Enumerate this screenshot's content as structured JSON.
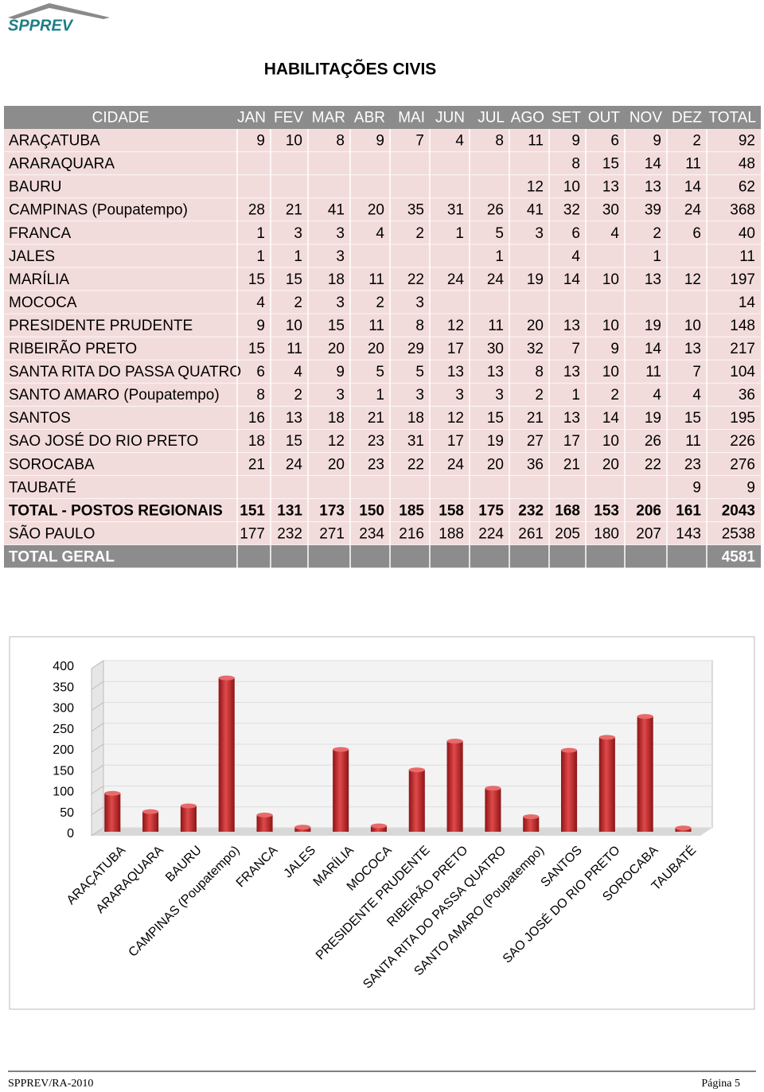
{
  "header": {
    "logo": "SPPREV",
    "title": "HABILITAÇÕES CIVIS"
  },
  "table": {
    "columns": [
      "CIDADE",
      "JAN",
      "FEV",
      "MAR",
      "ABR",
      "MAI",
      "JUN",
      "JUL",
      "AGO",
      "SET",
      "OUT",
      "NOV",
      "DEZ",
      "TOTAL"
    ],
    "rows": [
      {
        "label": "ARAÇATUBA",
        "values": [
          9,
          10,
          8,
          9,
          7,
          4,
          8,
          11,
          9,
          6,
          9,
          2,
          92
        ]
      },
      {
        "label": "ARARAQUARA",
        "values": [
          null,
          null,
          null,
          null,
          null,
          null,
          null,
          null,
          8,
          15,
          14,
          11,
          48
        ]
      },
      {
        "label": "BAURU",
        "values": [
          null,
          null,
          null,
          null,
          null,
          null,
          null,
          12,
          10,
          13,
          13,
          14,
          62
        ]
      },
      {
        "label": "CAMPINAS (Poupatempo)",
        "values": [
          28,
          21,
          41,
          20,
          35,
          31,
          26,
          41,
          32,
          30,
          39,
          24,
          368
        ]
      },
      {
        "label": "FRANCA",
        "values": [
          1,
          3,
          3,
          4,
          2,
          1,
          5,
          3,
          6,
          4,
          2,
          6,
          40
        ]
      },
      {
        "label": "JALES",
        "values": [
          1,
          1,
          3,
          null,
          null,
          null,
          1,
          null,
          4,
          null,
          1,
          null,
          11
        ]
      },
      {
        "label": "MARÍLIA",
        "values": [
          15,
          15,
          18,
          11,
          22,
          24,
          24,
          19,
          14,
          10,
          13,
          12,
          197
        ]
      },
      {
        "label": "MOCOCA",
        "values": [
          4,
          2,
          3,
          2,
          3,
          null,
          null,
          null,
          null,
          null,
          null,
          null,
          14
        ]
      },
      {
        "label": "PRESIDENTE PRUDENTE",
        "values": [
          9,
          10,
          15,
          11,
          8,
          12,
          11,
          20,
          13,
          10,
          19,
          10,
          148
        ]
      },
      {
        "label": "RIBEIRÃO PRETO",
        "values": [
          15,
          11,
          20,
          20,
          29,
          17,
          30,
          32,
          7,
          9,
          14,
          13,
          217
        ]
      },
      {
        "label": "SANTA RITA DO PASSA QUATRO",
        "values": [
          6,
          4,
          9,
          5,
          5,
          13,
          13,
          8,
          13,
          10,
          11,
          7,
          104
        ]
      },
      {
        "label": "SANTO AMARO (Poupatempo)",
        "values": [
          8,
          2,
          3,
          1,
          3,
          3,
          3,
          2,
          1,
          2,
          4,
          4,
          36
        ]
      },
      {
        "label": "SANTOS",
        "values": [
          16,
          13,
          18,
          21,
          18,
          12,
          15,
          21,
          13,
          14,
          19,
          15,
          195
        ]
      },
      {
        "label": "SAO JOSÉ DO RIO PRETO",
        "values": [
          18,
          15,
          12,
          23,
          31,
          17,
          19,
          27,
          17,
          10,
          26,
          11,
          226
        ]
      },
      {
        "label": "SOROCABA",
        "values": [
          21,
          24,
          20,
          23,
          22,
          24,
          20,
          36,
          21,
          20,
          22,
          23,
          276
        ]
      },
      {
        "label": "TAUBATÉ",
        "values": [
          null,
          null,
          null,
          null,
          null,
          null,
          null,
          null,
          null,
          null,
          null,
          9,
          9
        ]
      },
      {
        "label": "TOTAL - POSTOS REGIONAIS",
        "values": [
          151,
          131,
          173,
          150,
          185,
          158,
          175,
          232,
          168,
          153,
          206,
          161,
          2043
        ]
      },
      {
        "label": "SÃO PAULO",
        "values": [
          177,
          232,
          271,
          234,
          216,
          188,
          224,
          261,
          205,
          180,
          207,
          143,
          2538
        ]
      },
      {
        "label": "TOTAL GERAL",
        "values": [
          null,
          null,
          null,
          null,
          null,
          null,
          null,
          null,
          null,
          null,
          null,
          null,
          4581
        ]
      }
    ]
  },
  "chart_data": {
    "type": "bar",
    "categories": [
      "ARAÇATUBA",
      "ARARAQUARA",
      "BAURU",
      "CAMPINAS (Poupatempo)",
      "FRANCA",
      "JALES",
      "MARÍLIA",
      "MOCOCA",
      "PRESIDENTE PRUDENTE",
      "RIBEIRÃO PRETO",
      "SANTA RITA DO PASSA QUATRO",
      "SANTO AMARO (Poupatempo)",
      "SANTOS",
      "SAO JOSÉ DO RIO PRETO",
      "SOROCABA",
      "TAUBATÉ"
    ],
    "values": [
      92,
      48,
      62,
      368,
      40,
      11,
      197,
      14,
      148,
      217,
      104,
      36,
      195,
      226,
      276,
      9
    ],
    "color": "#c0282a",
    "ylim": [
      0,
      400
    ],
    "yticks": [
      0,
      50,
      100,
      150,
      200,
      250,
      300,
      350,
      400
    ]
  },
  "footer": {
    "left": "SPPREV/RA-2010",
    "right": "Página 5"
  }
}
